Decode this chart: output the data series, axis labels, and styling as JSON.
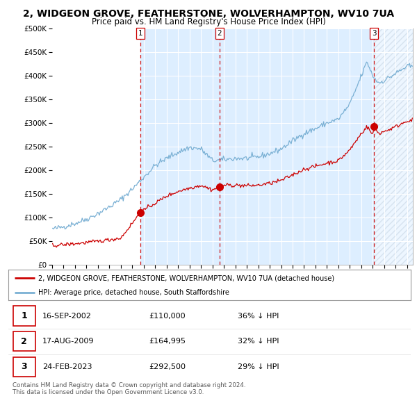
{
  "title": "2, WIDGEON GROVE, FEATHERSTONE, WOLVERHAMPTON, WV10 7UA",
  "subtitle": "Price paid vs. HM Land Registry's House Price Index (HPI)",
  "sale_times": [
    2002.708,
    2009.625,
    2023.125
  ],
  "sale_prices": [
    110000,
    164995,
    292500
  ],
  "sale_labels": [
    "1",
    "2",
    "3"
  ],
  "legend_red": "2, WIDGEON GROVE, FEATHERSTONE, WOLVERHAMPTON, WV10 7UA (detached house)",
  "legend_blue": "HPI: Average price, detached house, South Staffordshire",
  "table_rows": [
    [
      "1",
      "16-SEP-2002",
      "£110,000",
      "36% ↓ HPI"
    ],
    [
      "2",
      "17-AUG-2009",
      "£164,995",
      "32% ↓ HPI"
    ],
    [
      "3",
      "24-FEB-2023",
      "£292,500",
      "29% ↓ HPI"
    ]
  ],
  "footnote": "Contains HM Land Registry data © Crown copyright and database right 2024.\nThis data is licensed under the Open Government Licence v3.0.",
  "hpi_knots": [
    1995,
    1996,
    1997,
    1998,
    1999,
    2000,
    2001,
    2002,
    2003,
    2004,
    2005,
    2006,
    2007,
    2008,
    2009,
    2010,
    2011,
    2012,
    2013,
    2014,
    2015,
    2016,
    2017,
    2018,
    2019,
    2020,
    2021,
    2022,
    2022.5,
    2023,
    2023.5,
    2024,
    2025,
    2026
  ],
  "hpi_vals": [
    75000,
    80000,
    87000,
    96000,
    108000,
    122000,
    138000,
    160000,
    185000,
    210000,
    225000,
    238000,
    248000,
    245000,
    220000,
    222000,
    225000,
    225000,
    228000,
    235000,
    245000,
    262000,
    278000,
    288000,
    300000,
    308000,
    340000,
    400000,
    430000,
    400000,
    385000,
    390000,
    405000,
    420000
  ],
  "red_knots": [
    1995,
    1997,
    1999,
    2001,
    2002.708,
    2003,
    2004,
    2005,
    2006,
    2007,
    2008,
    2009.0,
    2009.625,
    2010,
    2011,
    2012,
    2013,
    2014,
    2015,
    2016,
    2017,
    2018,
    2019,
    2020,
    2021,
    2022,
    2022.5,
    2023.0,
    2023.125,
    2023.5,
    2024,
    2025,
    2026
  ],
  "red_vals": [
    40000,
    44000,
    49000,
    56000,
    110000,
    115000,
    130000,
    145000,
    155000,
    162000,
    168000,
    158000,
    164995,
    168000,
    168000,
    167000,
    168000,
    172000,
    178000,
    190000,
    202000,
    208000,
    215000,
    220000,
    243000,
    278000,
    292500,
    275000,
    292500,
    278000,
    282000,
    292000,
    305000
  ],
  "ylim": [
    0,
    500000
  ],
  "yticks": [
    0,
    50000,
    100000,
    150000,
    200000,
    250000,
    300000,
    350000,
    400000,
    450000,
    500000
  ],
  "xlim_start": 1995,
  "xlim_end": 2026.5,
  "red_color": "#cc0000",
  "blue_color": "#7ab0d4",
  "vline_color": "#cc0000",
  "shade_color": "#ddeeff",
  "hatch_color": "#c0d0e0",
  "background_color": "#ffffff",
  "plot_bg_color": "#ffffff"
}
